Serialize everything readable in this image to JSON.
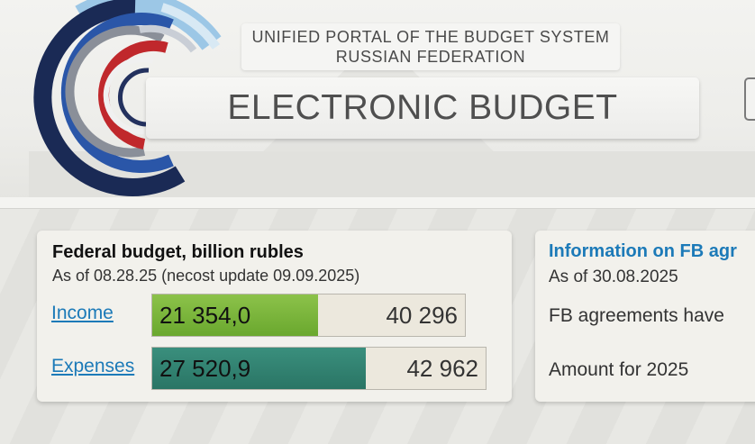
{
  "header": {
    "portal_line1": "UNIFIED PORTAL OF THE BUDGET SYSTEM",
    "portal_line2": "RUSSIAN FEDERATION",
    "title": "ELECTRONIC BUDGET"
  },
  "federal_budget": {
    "title": "Federal budget, billion rubles",
    "subtitle": "As of 08.28.25 (necost update 09.09.2025)",
    "income": {
      "label": "Income",
      "value": "21 354,0",
      "total": "40 296",
      "fill_fraction": 0.53
    },
    "expenses": {
      "label": "Expenses",
      "value": "27 520,9",
      "total": "42 962",
      "fill_fraction": 0.64
    }
  },
  "fb_info": {
    "title": "Information on FB agr",
    "date": "As of 30.08.2025",
    "agreements_line": "FB agreements have",
    "amount_line": "Amount for 2025"
  },
  "colors": {
    "income_bar": "#7ab83c",
    "expenses_bar": "#2f8070",
    "link": "#1c7ab8"
  }
}
